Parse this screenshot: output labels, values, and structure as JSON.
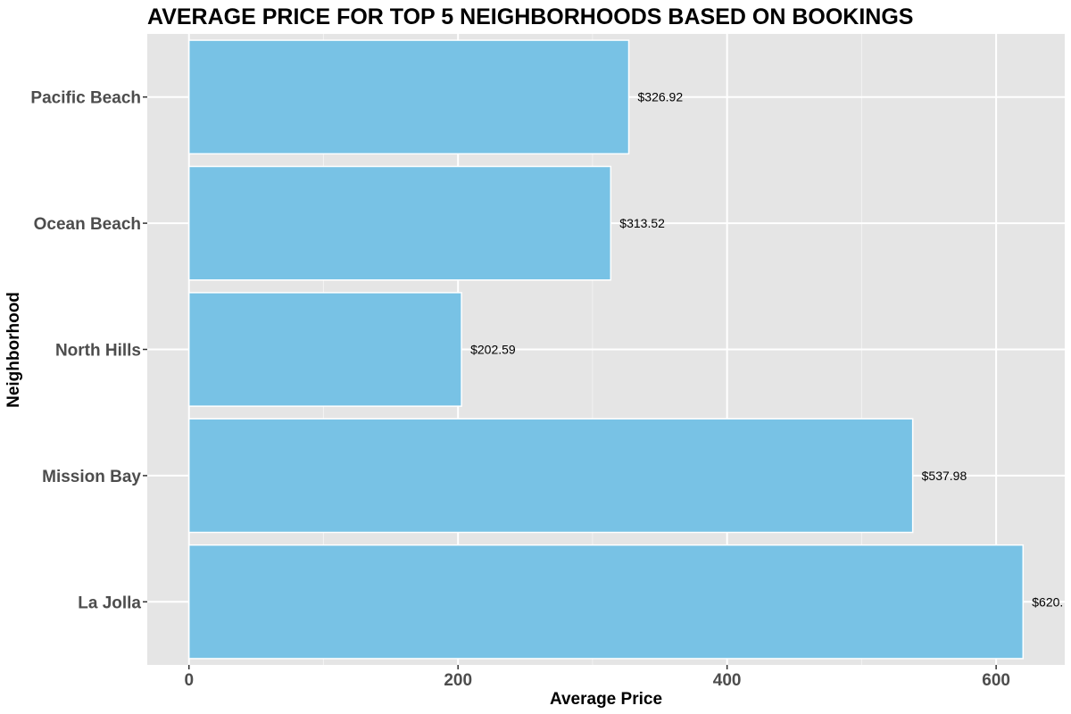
{
  "chart_data": {
    "type": "bar",
    "orientation": "horizontal",
    "title": "AVERAGE PRICE FOR TOP 5 NEIGHBORHOODS BASED ON BOOKINGS",
    "xlabel": "Average Price",
    "ylabel": "Neighborhood",
    "categories": [
      "Pacific Beach",
      "Ocean Beach",
      "North Hills",
      "Mission Bay",
      "La Jolla"
    ],
    "values": [
      326.92,
      313.52,
      202.59,
      537.98,
      620.0
    ],
    "data_labels": [
      "$326.92",
      "$313.52",
      "$202.59",
      "$537.98",
      "$620."
    ],
    "xlim": [
      -31,
      651
    ],
    "x_ticks": [
      0,
      200,
      400,
      600
    ],
    "x_minor_ticks": [
      100,
      300,
      500
    ],
    "grid": true,
    "colors": {
      "bar_fill": "#78c2e5",
      "bar_outline": "#ffffff",
      "panel_background": "#e5e5e5",
      "grid_major": "#ffffff",
      "grid_minor": "#f2f2f2"
    }
  }
}
